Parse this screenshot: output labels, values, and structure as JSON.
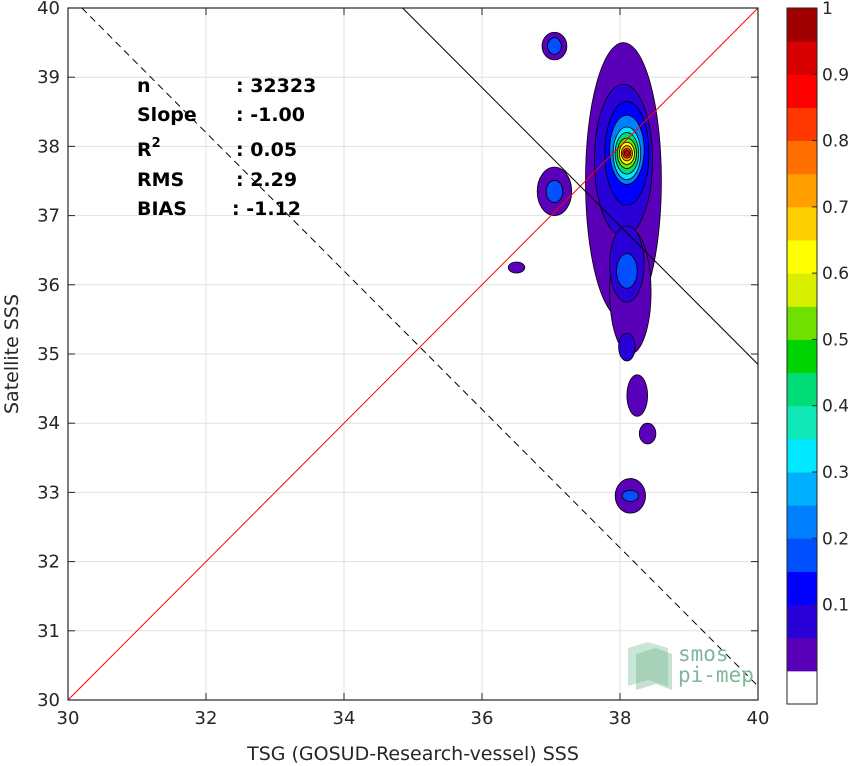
{
  "chart_data": {
    "type": "heatmap",
    "subtype": "contour density scatter",
    "xlabel": "TSG (GOSUD-Research-vessel) SSS",
    "ylabel": "Satellite SSS",
    "xlim": [
      30,
      40
    ],
    "ylim": [
      30,
      40
    ],
    "x_ticks": [
      "30",
      "32",
      "34",
      "36",
      "38",
      "40"
    ],
    "y_ticks": [
      "30",
      "31",
      "32",
      "33",
      "34",
      "35",
      "36",
      "37",
      "38",
      "39",
      "40"
    ],
    "grid": true,
    "stats": [
      {
        "label": "n",
        "value": ": 32323"
      },
      {
        "label": "Slope",
        "value": ": -1.00"
      },
      {
        "label": "R",
        "sup": "2",
        "value": ": 0.05"
      },
      {
        "label": "RMS",
        "value": ": 2.29"
      },
      {
        "label": "BIAS",
        "value": ": -1.12"
      }
    ],
    "lines": [
      {
        "name": "1:1 line",
        "color": "#ff0000",
        "style": "solid",
        "points": [
          [
            30,
            30
          ],
          [
            40,
            40
          ]
        ]
      },
      {
        "name": "regression fit",
        "color": "#000000",
        "style": "dashed",
        "points": [
          [
            30.2,
            40
          ],
          [
            40,
            30.2
          ]
        ]
      },
      {
        "name": "secondary fit",
        "color": "#000000",
        "style": "solid",
        "points": [
          [
            34.85,
            40
          ],
          [
            40,
            34.85
          ]
        ]
      }
    ],
    "colorbar": {
      "ticks": [
        "0.1",
        "0.2",
        "0.3",
        "0.4",
        "0.5",
        "0.6",
        "0.7",
        "0.8",
        "0.9",
        "1"
      ],
      "levels": 19,
      "colors": [
        "#ffffff",
        "#5a00b8",
        "#2a00d8",
        "#0000ff",
        "#0050ff",
        "#0080ff",
        "#00b0ff",
        "#00e8ff",
        "#10e8b8",
        "#00dc78",
        "#00d400",
        "#70e000",
        "#d8f000",
        "#ffff00",
        "#ffd000",
        "#ffa000",
        "#ff7000",
        "#ff3800",
        "#ff0000",
        "#d80000",
        "#a00000"
      ]
    },
    "density_blobs": [
      {
        "x": 38.05,
        "y": 37.5,
        "rx": 0.55,
        "ry": 2.0,
        "level": 0.05
      },
      {
        "x": 38.15,
        "y": 35.9,
        "rx": 0.3,
        "ry": 0.9,
        "level": 0.05
      },
      {
        "x": 38.25,
        "y": 34.4,
        "rx": 0.15,
        "ry": 0.3,
        "level": 0.05
      },
      {
        "x": 38.4,
        "y": 33.85,
        "rx": 0.12,
        "ry": 0.15,
        "level": 0.05
      },
      {
        "x": 38.15,
        "y": 32.95,
        "rx": 0.22,
        "ry": 0.25,
        "level": 0.05
      },
      {
        "x": 37.05,
        "y": 39.45,
        "rx": 0.18,
        "ry": 0.2,
        "level": 0.05
      },
      {
        "x": 37.05,
        "y": 37.35,
        "rx": 0.25,
        "ry": 0.35,
        "level": 0.05
      },
      {
        "x": 36.5,
        "y": 36.25,
        "rx": 0.12,
        "ry": 0.08,
        "level": 0.05
      },
      {
        "x": 38.05,
        "y": 37.8,
        "rx": 0.42,
        "ry": 1.1,
        "level": 0.1
      },
      {
        "x": 38.1,
        "y": 36.3,
        "rx": 0.25,
        "ry": 0.55,
        "level": 0.1
      },
      {
        "x": 38.1,
        "y": 35.1,
        "rx": 0.12,
        "ry": 0.2,
        "level": 0.1
      },
      {
        "x": 37.05,
        "y": 39.45,
        "rx": 0.1,
        "ry": 0.12,
        "level": 0.2
      },
      {
        "x": 37.05,
        "y": 37.35,
        "rx": 0.12,
        "ry": 0.16,
        "level": 0.2
      },
      {
        "x": 38.1,
        "y": 37.9,
        "rx": 0.32,
        "ry": 0.75,
        "level": 0.15
      },
      {
        "x": 38.1,
        "y": 36.2,
        "rx": 0.15,
        "ry": 0.25,
        "level": 0.2
      },
      {
        "x": 38.15,
        "y": 32.95,
        "rx": 0.12,
        "ry": 0.08,
        "level": 0.2
      },
      {
        "x": 38.1,
        "y": 37.95,
        "rx": 0.25,
        "ry": 0.5,
        "level": 0.25
      },
      {
        "x": 38.1,
        "y": 37.9,
        "rx": 0.2,
        "ry": 0.38,
        "level": 0.35
      },
      {
        "x": 38.1,
        "y": 37.9,
        "rx": 0.17,
        "ry": 0.3,
        "level": 0.45
      },
      {
        "x": 38.1,
        "y": 37.9,
        "rx": 0.14,
        "ry": 0.22,
        "level": 0.55
      },
      {
        "x": 38.1,
        "y": 37.9,
        "rx": 0.11,
        "ry": 0.16,
        "level": 0.65
      },
      {
        "x": 38.1,
        "y": 37.9,
        "rx": 0.08,
        "ry": 0.11,
        "level": 0.75
      },
      {
        "x": 38.1,
        "y": 37.9,
        "rx": 0.06,
        "ry": 0.07,
        "level": 0.85
      },
      {
        "x": 38.1,
        "y": 37.9,
        "rx": 0.04,
        "ry": 0.04,
        "level": 0.97
      }
    ]
  },
  "watermark": {
    "line1": "smos",
    "line2": "pi-mep"
  }
}
